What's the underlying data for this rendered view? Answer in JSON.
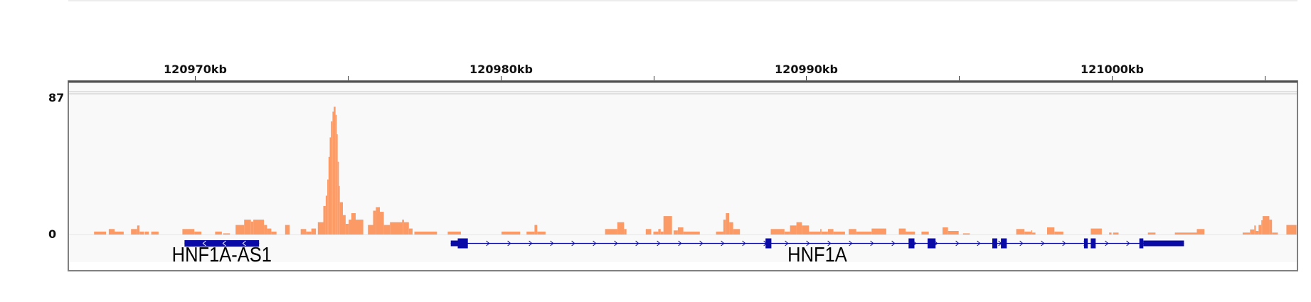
{
  "chart_data": {
    "type": "bar",
    "xlabel": "",
    "ylabel": "",
    "x_unit": "kb",
    "xlim": [
      120965.88,
      121006.05
    ],
    "ylim": [
      0,
      87
    ],
    "data_range_labels": {
      "max": "87",
      "min": "0"
    },
    "ruler_ticks": [
      {
        "kb": 120970,
        "label": "120970kb"
      },
      {
        "kb": 120975,
        "label": ""
      },
      {
        "kb": 120980,
        "label": "120980kb"
      },
      {
        "kb": 120985,
        "label": ""
      },
      {
        "kb": 120990,
        "label": "120990kb"
      },
      {
        "kb": 120995,
        "label": ""
      },
      {
        "kb": 121000,
        "label": "121000kb"
      },
      {
        "kb": 121005,
        "label": ""
      }
    ],
    "colors": {
      "coverage": "#fc9a66",
      "gene": "#0a0aa6",
      "track_bg": "#f9f9f9",
      "frame": "#808080"
    },
    "coverage_segments": [
      [
        120966.7,
        120967.09,
        1.8
      ],
      [
        120967.18,
        120967.37,
        3.4
      ],
      [
        120967.37,
        120967.67,
        1.8
      ],
      [
        120967.91,
        120968.11,
        3.4
      ],
      [
        120968.11,
        120968.19,
        5.6
      ],
      [
        120968.19,
        120968.34,
        1.8
      ],
      [
        120968.36,
        120968.49,
        1.8
      ],
      [
        120968.57,
        120968.81,
        1.8
      ],
      [
        120969.59,
        120969.98,
        3.4
      ],
      [
        120969.98,
        120970.21,
        1.8
      ],
      [
        120970.66,
        120970.88,
        1.8
      ],
      [
        120970.92,
        120971.14,
        0.7
      ],
      [
        120971.33,
        120971.61,
        5.9
      ],
      [
        120971.61,
        120971.83,
        9.2
      ],
      [
        120971.83,
        120971.91,
        8
      ],
      [
        120971.91,
        120972.26,
        9.2
      ],
      [
        120972.26,
        120972.36,
        5.9
      ],
      [
        120972.36,
        120972.5,
        3.7
      ],
      [
        120972.5,
        120972.67,
        1.8
      ],
      [
        120972.95,
        120973.1,
        5.9
      ],
      [
        120973.46,
        120973.64,
        3.4
      ],
      [
        120973.64,
        120973.81,
        1.8
      ],
      [
        120973.81,
        120973.96,
        3.7
      ],
      [
        120974.02,
        120974.2,
        7.6
      ],
      [
        120974.2,
        120974.28,
        17.6
      ],
      [
        120974.28,
        120974.33,
        24
      ],
      [
        120974.33,
        120974.37,
        34
      ],
      [
        120974.37,
        120974.41,
        48
      ],
      [
        120974.41,
        120974.45,
        60
      ],
      [
        120974.45,
        120974.5,
        70
      ],
      [
        120974.5,
        120974.54,
        76
      ],
      [
        120974.54,
        120974.6,
        79
      ],
      [
        120974.6,
        120974.64,
        74
      ],
      [
        120974.64,
        120974.67,
        62
      ],
      [
        120974.67,
        120974.71,
        45
      ],
      [
        120974.71,
        120974.74,
        30
      ],
      [
        120974.74,
        120974.84,
        20
      ],
      [
        120974.84,
        120974.93,
        12
      ],
      [
        120974.93,
        120975.03,
        6.6
      ],
      [
        120975.03,
        120975.12,
        9.2
      ],
      [
        120975.12,
        120975.26,
        13.2
      ],
      [
        120975.26,
        120975.51,
        9.2
      ],
      [
        120975.66,
        120975.83,
        5.9
      ],
      [
        120975.83,
        120975.92,
        14.7
      ],
      [
        120975.92,
        120976.05,
        16.9
      ],
      [
        120976.05,
        120976.18,
        14
      ],
      [
        120976.18,
        120976.38,
        5.9
      ],
      [
        120976.38,
        120976.78,
        7.6
      ],
      [
        120976.78,
        120976.84,
        9.2
      ],
      [
        120976.84,
        120977.0,
        7.6
      ],
      [
        120977.0,
        120977.12,
        3.7
      ],
      [
        120977.18,
        120977.92,
        1.8
      ],
      [
        120978.27,
        120978.7,
        1.8
      ],
      [
        120980.03,
        120980.64,
        1.8
      ],
      [
        120980.85,
        120981.11,
        1.8
      ],
      [
        120981.11,
        120981.2,
        5.9
      ],
      [
        120981.2,
        120981.47,
        1.8
      ],
      [
        120983.42,
        120983.82,
        3.4
      ],
      [
        120983.82,
        120984.04,
        7.6
      ],
      [
        120984.04,
        120984.12,
        3.4
      ],
      [
        120984.75,
        120984.93,
        3.4
      ],
      [
        120985.0,
        120985.16,
        1.8
      ],
      [
        120985.16,
        120985.24,
        3.4
      ],
      [
        120985.24,
        120985.33,
        1.8
      ],
      [
        120985.33,
        120985.61,
        11.4
      ],
      [
        120985.66,
        120985.8,
        2.5
      ],
      [
        120985.8,
        120985.98,
        4.4
      ],
      [
        120985.98,
        120986.52,
        1.8
      ],
      [
        120987.05,
        120987.29,
        1.8
      ],
      [
        120987.29,
        120987.37,
        9.2
      ],
      [
        120987.37,
        120987.48,
        13.2
      ],
      [
        120987.48,
        120987.61,
        7.6
      ],
      [
        120987.61,
        120987.83,
        3.4
      ],
      [
        120988.84,
        120989.29,
        3.4
      ],
      [
        120989.29,
        120989.47,
        1.8
      ],
      [
        120989.47,
        120989.68,
        5.6
      ],
      [
        120989.68,
        120989.86,
        7.6
      ],
      [
        120989.86,
        120990.09,
        5.6
      ],
      [
        120990.09,
        120990.46,
        1.8
      ],
      [
        120990.46,
        120990.5,
        3.4
      ],
      [
        120990.5,
        120990.71,
        1.8
      ],
      [
        120990.71,
        120990.89,
        3.4
      ],
      [
        120990.89,
        120991.27,
        1.8
      ],
      [
        120991.39,
        120991.64,
        3.4
      ],
      [
        120991.64,
        120992.14,
        1.8
      ],
      [
        120992.14,
        120992.62,
        3.7
      ],
      [
        120993.03,
        120993.25,
        3.7
      ],
      [
        120993.25,
        120993.56,
        1.8
      ],
      [
        120993.77,
        120994.01,
        1.8
      ],
      [
        120994.46,
        120994.64,
        4.4
      ],
      [
        120994.64,
        120994.99,
        2.2
      ],
      [
        120995.13,
        120995.35,
        0.7
      ],
      [
        120996.87,
        120997.14,
        3.4
      ],
      [
        120997.14,
        120997.36,
        1.8
      ],
      [
        120997.36,
        120997.39,
        2.6
      ],
      [
        120997.39,
        120997.5,
        1.2
      ],
      [
        120997.88,
        120998.12,
        4.4
      ],
      [
        120998.12,
        120998.41,
        1.8
      ],
      [
        120999.31,
        120999.67,
        3.7
      ],
      [
        120999.91,
        120999.99,
        1.2
      ],
      [
        121000.04,
        121000.22,
        1.2
      ],
      [
        121001.18,
        121001.43,
        1.2
      ],
      [
        121002.06,
        121002.78,
        1.2
      ],
      [
        121002.78,
        121003.03,
        3.4
      ],
      [
        121004.28,
        121004.52,
        1.2
      ],
      [
        121004.52,
        121004.66,
        3.1
      ],
      [
        121004.66,
        121004.71,
        5.6
      ],
      [
        121004.71,
        121004.8,
        2.2
      ],
      [
        121004.8,
        121004.89,
        5.9
      ],
      [
        121004.89,
        121004.93,
        8.8
      ],
      [
        121004.93,
        121005.15,
        11.4
      ],
      [
        121005.15,
        121005.24,
        9.2
      ],
      [
        121005.24,
        121005.43,
        1.2
      ],
      [
        121005.71,
        121006.04,
        5.9
      ]
    ],
    "genes": [
      {
        "name": "HNF1A-AS1",
        "strand": "-",
        "start": 120969.66,
        "end": 120972.1,
        "exons": [
          [
            120969.66,
            120972.1,
            "mid"
          ]
        ]
      },
      {
        "name": "HNF1A",
        "strand": "+",
        "start": 120978.37,
        "end": 121002.36,
        "exons": [
          [
            120978.37,
            120978.6,
            "utr"
          ],
          [
            120978.6,
            120978.93,
            "cds"
          ],
          [
            120988.67,
            120988.86,
            "cds"
          ],
          [
            120993.35,
            120993.54,
            "cds"
          ],
          [
            120993.97,
            120994.23,
            "cds"
          ],
          [
            120996.09,
            120996.25,
            "cds"
          ],
          [
            120996.37,
            120996.56,
            "cds"
          ],
          [
            120999.09,
            120999.21,
            "cds"
          ],
          [
            120999.31,
            120999.47,
            "cds"
          ],
          [
            121000.9,
            121001.03,
            "cds"
          ],
          [
            121001.03,
            121002.36,
            "utr"
          ]
        ]
      }
    ]
  }
}
